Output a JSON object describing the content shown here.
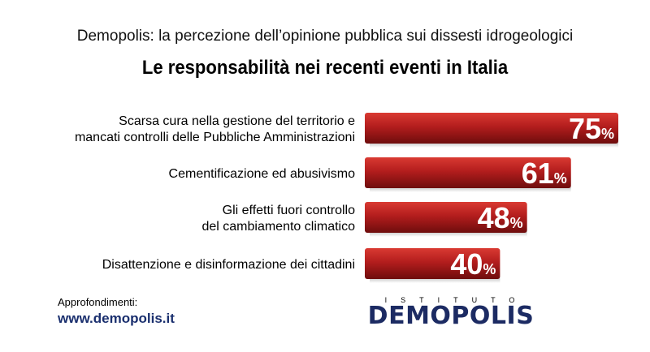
{
  "header": {
    "subtitle": "Demopolis: la percezione dell’opinione pubblica sui dissesti idrogeologici",
    "title": "Le responsabilità nei recenti eventi in Italia"
  },
  "chart_data": {
    "type": "bar",
    "orientation": "horizontal",
    "title": "Le responsabilità nei recenti eventi in Italia",
    "categories": [
      [
        "Scarsa cura nella gestione del territorio e",
        "mancati controlli delle Pubbliche Amministrazioni"
      ],
      [
        "Cementificazione ed abusivismo"
      ],
      [
        "Gli effetti fuori controllo",
        "del cambiamento climatico"
      ],
      [
        "Disattenzione e disinformazione dei cittadini"
      ]
    ],
    "values": [
      75,
      61,
      48,
      40
    ],
    "value_suffix": "%",
    "bar_color": "#b01e1e",
    "xlim": [
      0,
      100
    ]
  },
  "footer": {
    "label": "Approfondimenti:",
    "link": "www.demopolis.it"
  },
  "logo": {
    "top": "ISTITUTO",
    "word": "DEMOPOLIS"
  }
}
